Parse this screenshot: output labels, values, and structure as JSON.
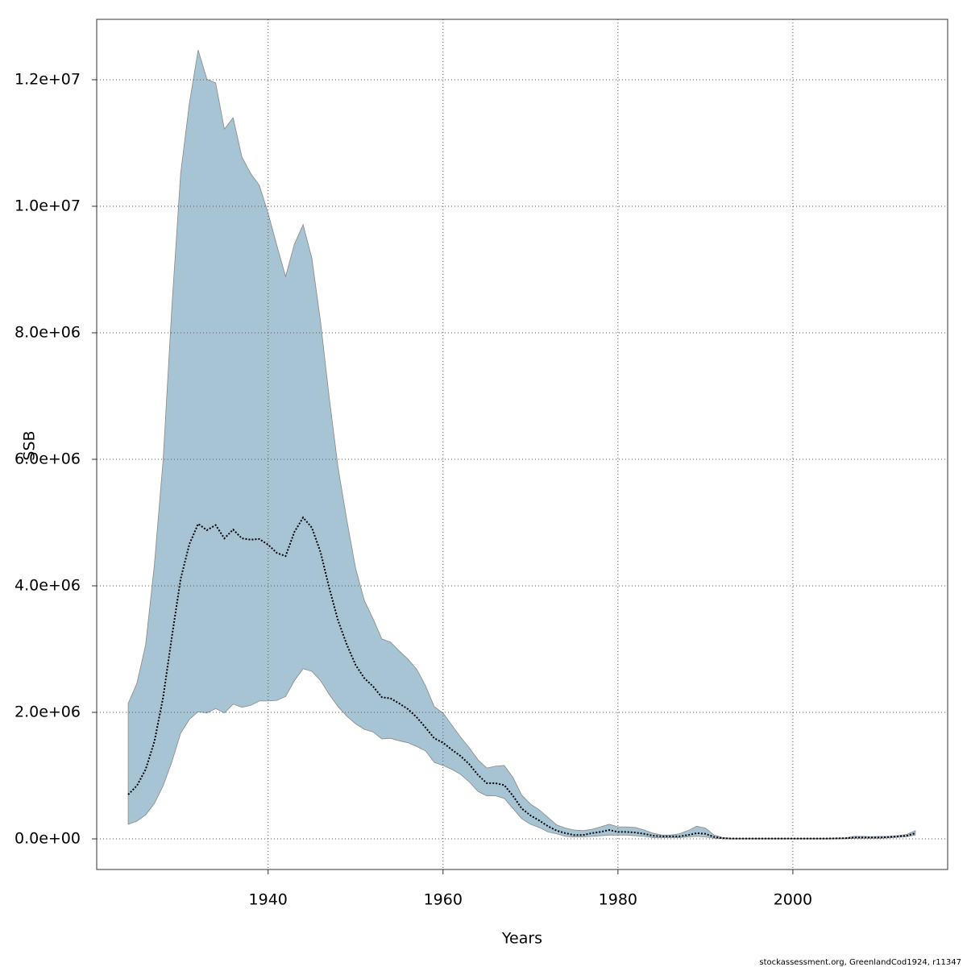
{
  "chart_data": {
    "type": "line",
    "x_label": "Years",
    "y_label": "SSB",
    "footer": "stockassessment.org, GreenlandCod1924, r11347",
    "x": [
      1924,
      1925,
      1926,
      1927,
      1928,
      1929,
      1930,
      1931,
      1932,
      1933,
      1934,
      1935,
      1936,
      1937,
      1938,
      1939,
      1940,
      1941,
      1942,
      1943,
      1944,
      1945,
      1946,
      1947,
      1948,
      1949,
      1950,
      1951,
      1952,
      1953,
      1954,
      1955,
      1956,
      1957,
      1958,
      1959,
      1960,
      1961,
      1962,
      1963,
      1964,
      1965,
      1966,
      1967,
      1968,
      1969,
      1970,
      1971,
      1972,
      1973,
      1974,
      1975,
      1976,
      1977,
      1978,
      1979,
      1980,
      1981,
      1982,
      1983,
      1984,
      1985,
      1986,
      1987,
      1988,
      1989,
      1990,
      1991,
      1992,
      1993,
      1994,
      1995,
      1996,
      1997,
      1998,
      1999,
      2000,
      2001,
      2002,
      2003,
      2004,
      2005,
      2006,
      2007,
      2008,
      2009,
      2010,
      2011,
      2012,
      2013,
      2014
    ],
    "values": [
      700000,
      840000,
      1100000,
      1540000,
      2240000,
      3200000,
      4110000,
      4660000,
      4980000,
      4880000,
      4960000,
      4750000,
      4890000,
      4750000,
      4730000,
      4740000,
      4650000,
      4520000,
      4470000,
      4850000,
      5080000,
      4920000,
      4530000,
      3960000,
      3450000,
      3070000,
      2750000,
      2540000,
      2410000,
      2240000,
      2220000,
      2140000,
      2050000,
      1920000,
      1760000,
      1590000,
      1520000,
      1410000,
      1310000,
      1180000,
      1010000,
      880000,
      880000,
      850000,
      680000,
      480000,
      370000,
      290000,
      200000,
      130000,
      90000,
      60000,
      60000,
      90000,
      110000,
      140000,
      110000,
      110000,
      100000,
      80000,
      50000,
      40000,
      40000,
      40000,
      60000,
      90000,
      80000,
      30000,
      10000,
      5000,
      5000,
      5000,
      5000,
      5000,
      5000,
      5000,
      5000,
      5000,
      5000,
      5000,
      5000,
      8000,
      10000,
      20000,
      20000,
      20000,
      20000,
      30000,
      40000,
      50000,
      90000
    ],
    "upper": [
      2140000,
      2460000,
      3070000,
      4340000,
      6000000,
      8420000,
      10520000,
      11630000,
      12470000,
      12010000,
      11950000,
      11220000,
      11400000,
      10780000,
      10520000,
      10330000,
      9890000,
      9380000,
      8890000,
      9400000,
      9710000,
      9180000,
      8170000,
      6960000,
      5870000,
      5040000,
      4280000,
      3770000,
      3480000,
      3160000,
      3110000,
      2970000,
      2840000,
      2680000,
      2420000,
      2090000,
      1990000,
      1800000,
      1610000,
      1440000,
      1250000,
      1120000,
      1150000,
      1160000,
      970000,
      690000,
      550000,
      460000,
      340000,
      220000,
      170000,
      140000,
      130000,
      150000,
      190000,
      230000,
      190000,
      190000,
      180000,
      140000,
      90000,
      60000,
      60000,
      80000,
      130000,
      200000,
      170000,
      60000,
      20000,
      10000,
      10000,
      10000,
      10000,
      10000,
      10000,
      10000,
      10000,
      10000,
      10000,
      10000,
      10000,
      12000,
      15000,
      40000,
      40000,
      35000,
      40000,
      40000,
      50000,
      70000,
      130000
    ],
    "lower": [
      230000,
      280000,
      380000,
      560000,
      840000,
      1220000,
      1670000,
      1890000,
      2010000,
      1990000,
      2060000,
      1990000,
      2130000,
      2080000,
      2110000,
      2180000,
      2180000,
      2190000,
      2250000,
      2500000,
      2690000,
      2650000,
      2500000,
      2280000,
      2090000,
      1940000,
      1820000,
      1730000,
      1690000,
      1580000,
      1590000,
      1550000,
      1520000,
      1460000,
      1390000,
      1210000,
      1160000,
      1100000,
      1020000,
      900000,
      750000,
      680000,
      680000,
      640000,
      480000,
      320000,
      230000,
      180000,
      110000,
      80000,
      40000,
      30000,
      30000,
      40000,
      50000,
      60000,
      60000,
      60000,
      50000,
      40000,
      20000,
      20000,
      20000,
      20000,
      30000,
      40000,
      30000,
      10000,
      2000,
      1000,
      1000,
      1000,
      1000,
      1000,
      1000,
      1000,
      1000,
      1000,
      1000,
      1000,
      1000,
      2000,
      3000,
      10000,
      10000,
      10000,
      10000,
      15000,
      25000,
      35000,
      60000
    ],
    "color": "#000000",
    "band_color": "#a7c4d4",
    "xlim": [
      1920.4,
      2017.7
    ],
    "ylim": [
      -484000,
      12955000
    ],
    "xticks": [
      1940,
      1960,
      1980,
      2000
    ],
    "yticks": [
      {
        "value": 0,
        "label": "0.0e+00"
      },
      {
        "value": 2000000,
        "label": "2.0e+06"
      },
      {
        "value": 4000000,
        "label": "4.0e+06"
      },
      {
        "value": 6000000,
        "label": "6.0e+06"
      },
      {
        "value": 8000000,
        "label": "8.0e+06"
      },
      {
        "value": 10000000,
        "label": "1.0e+07"
      },
      {
        "value": 12000000,
        "label": "1.2e+07"
      }
    ],
    "grid": true
  }
}
